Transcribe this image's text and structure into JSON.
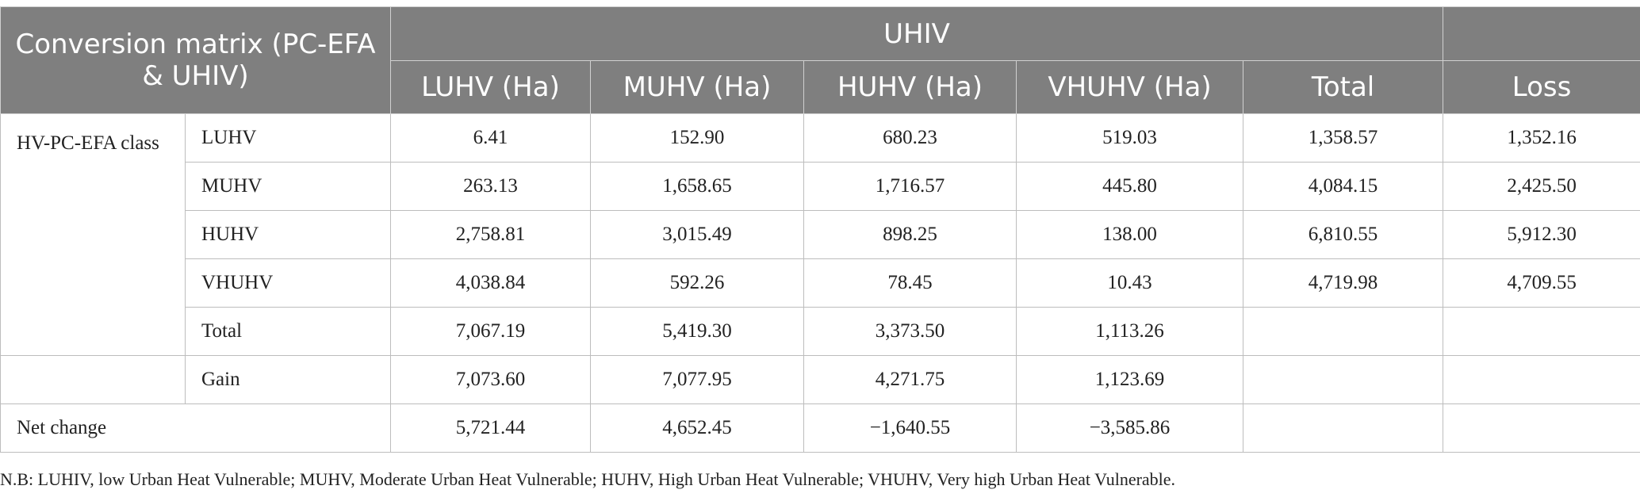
{
  "table": {
    "corner_header": "Conversion matrix (PC-EFA & UHIV)",
    "group_header": "UHIV",
    "columns": [
      "LUHV (Ha)",
      "MUHV (Ha)",
      "HUHV (Ha)",
      "VHUHV (Ha)",
      "Total",
      "Loss"
    ],
    "row_group_label": "HV-PC-EFA class",
    "rows": [
      {
        "label": "LUHV",
        "cells": [
          "6.41",
          "152.90",
          "680.23",
          "519.03",
          "1,358.57",
          "1,352.16"
        ]
      },
      {
        "label": "MUHV",
        "cells": [
          "263.13",
          "1,658.65",
          "1,716.57",
          "445.80",
          "4,084.15",
          "2,425.50"
        ]
      },
      {
        "label": "HUHV",
        "cells": [
          "2,758.81",
          "3,015.49",
          "898.25",
          "138.00",
          "6,810.55",
          "5,912.30"
        ]
      },
      {
        "label": "VHUHV",
        "cells": [
          "4,038.84",
          "592.26",
          "78.45",
          "10.43",
          "4,719.98",
          "4,709.55"
        ]
      },
      {
        "label": "Total",
        "cells": [
          "7,067.19",
          "5,419.30",
          "3,373.50",
          "1,113.26",
          "",
          ""
        ]
      }
    ],
    "gain_row": {
      "label": "Gain",
      "cells": [
        "7,073.60",
        "7,077.95",
        "4,271.75",
        "1,123.69",
        "",
        ""
      ]
    },
    "net_row": {
      "label": "Net change",
      "cells": [
        "5,721.44",
        "4,652.45",
        "−1,640.55",
        "−3,585.86",
        "",
        ""
      ]
    }
  },
  "footnote": "N.B: LUHIV, low Urban Heat Vulnerable; MUHV, Moderate Urban Heat Vulnerable; HUHV, High Urban Heat Vulnerable; VHUHV, Very high Urban Heat Vulnerable."
}
